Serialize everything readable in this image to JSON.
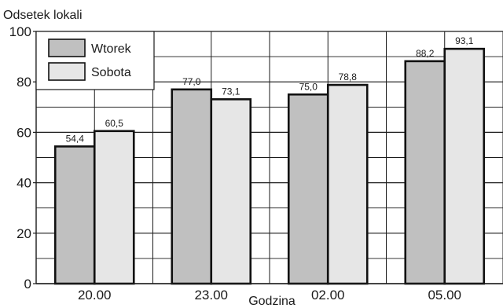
{
  "chart_data": {
    "type": "bar",
    "ylabel": "Odsetek lokali",
    "xlabel": "Godzina",
    "ylim": [
      0,
      100
    ],
    "yticks": [
      "0",
      "20",
      "40",
      "60",
      "80",
      "100"
    ],
    "categories": [
      "20.00",
      "23.00",
      "02.00",
      "05.00"
    ],
    "series": [
      {
        "name": "Wtorek",
        "color": "#c0c0c0",
        "values": [
          54.4,
          77.0,
          75.0,
          88.2
        ],
        "labels": [
          "54,4",
          "77,0",
          "75,0",
          "88,2"
        ]
      },
      {
        "name": "Sobota",
        "color": "#e6e6e6",
        "values": [
          60.5,
          73.1,
          78.8,
          93.1
        ],
        "labels": [
          "60,5",
          "73,1",
          "78,8",
          "93,1"
        ]
      }
    ],
    "grid": true,
    "legend_position": "top-left"
  }
}
